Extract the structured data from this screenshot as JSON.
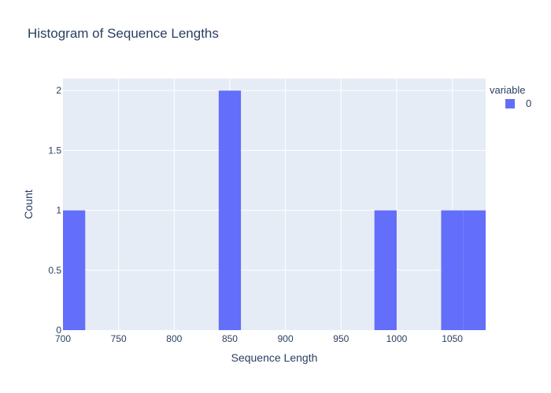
{
  "chart_data": {
    "type": "bar",
    "title": "Histogram of Sequence Lengths",
    "xlabel": "Sequence Length",
    "ylabel": "Count",
    "bin_width": 20,
    "bins": [
      {
        "start": 700,
        "end": 720,
        "count": 1
      },
      {
        "start": 840,
        "end": 860,
        "count": 2
      },
      {
        "start": 980,
        "end": 1000,
        "count": 1
      },
      {
        "start": 1040,
        "end": 1060,
        "count": 1
      },
      {
        "start": 1060,
        "end": 1080,
        "count": 1
      }
    ],
    "xlim": [
      700,
      1080
    ],
    "ylim": [
      0,
      2.1
    ],
    "x_ticks": [
      700,
      750,
      800,
      850,
      900,
      950,
      1000,
      1050
    ],
    "y_ticks": [
      0,
      0.5,
      1,
      1.5,
      2
    ],
    "y_tick_labels": [
      "0",
      "0.5",
      "1",
      "1.5",
      "2"
    ],
    "grid": true,
    "legend": {
      "title": "variable",
      "position": "top-right",
      "entries": [
        {
          "name": "0",
          "color": "#636efa"
        }
      ]
    },
    "colors": {
      "bar": "#636efa",
      "plot_bg": "#e5ecf6",
      "grid": "#ffffff"
    }
  }
}
